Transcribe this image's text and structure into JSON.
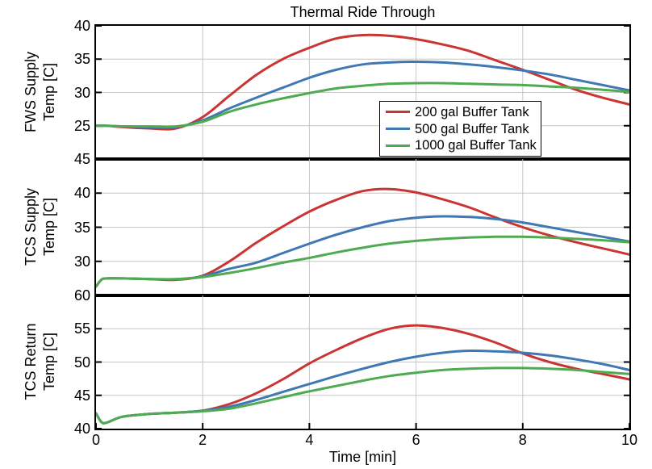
{
  "title": "Thermal Ride Through",
  "xlabel": "Time [min]",
  "colors": {
    "background": "#ffffff",
    "axis": "#000000",
    "grid": "#c6c6c6",
    "red": "#ca3432",
    "blue": "#4078b3",
    "green": "#4fab51"
  },
  "legend": {
    "position": "inside-upper-panel-right",
    "entries": [
      {
        "label": "200 gal Buffer Tank",
        "color": "#ca3432"
      },
      {
        "label": "500 gal Buffer Tank",
        "color": "#4078b3"
      },
      {
        "label": "1000 gal Buffer Tank",
        "color": "#4fab51"
      }
    ]
  },
  "chart_data": {
    "type": "line",
    "title": "Thermal Ride Through",
    "xlabel": "Time [min]",
    "xlim": [
      0,
      10
    ],
    "xticks": [
      0,
      2,
      4,
      6,
      8,
      10
    ],
    "grid": true,
    "x": [
      0,
      0.1,
      0.2,
      0.5,
      1,
      1.5,
      2,
      2.5,
      3,
      3.5,
      4,
      4.5,
      5,
      5.5,
      6,
      6.5,
      7,
      7.5,
      8,
      8.5,
      9,
      9.5,
      10
    ],
    "panels": [
      {
        "ylabel": [
          "FWS Supply",
          "Temp [C]"
        ],
        "ylim": [
          20,
          40
        ],
        "yticks": [
          25,
          30,
          35,
          40
        ],
        "series": [
          {
            "name": "200 gal Buffer Tank",
            "color": "#ca3432",
            "values": [
              25.0,
              25.0,
              25.0,
              24.8,
              24.6,
              24.6,
              26.3,
              29.5,
              32.6,
              35.0,
              36.7,
              38.1,
              38.6,
              38.5,
              38.0,
              37.2,
              36.2,
              34.8,
              33.4,
              31.9,
              30.4,
              29.2,
              28.2
            ]
          },
          {
            "name": "500 gal Buffer Tank",
            "color": "#4078b3",
            "values": [
              25.0,
              25.0,
              25.0,
              24.9,
              24.8,
              24.8,
              25.8,
              27.6,
              29.2,
              30.7,
              32.2,
              33.4,
              34.2,
              34.5,
              34.6,
              34.5,
              34.2,
              33.8,
              33.3,
              32.7,
              31.9,
              31.1,
              30.3
            ]
          },
          {
            "name": "1000 gal Buffer Tank",
            "color": "#4fab51",
            "values": [
              25.0,
              25.0,
              25.0,
              24.9,
              24.9,
              24.9,
              25.6,
              27.1,
              28.2,
              29.1,
              29.9,
              30.6,
              31.0,
              31.3,
              31.4,
              31.4,
              31.3,
              31.2,
              31.1,
              30.9,
              30.7,
              30.4,
              30.1
            ]
          }
        ]
      },
      {
        "ylabel": [
          "TCS Supply",
          "Temp [C]"
        ],
        "ylim": [
          25,
          45
        ],
        "yticks": [
          30,
          35,
          40,
          45
        ],
        "series": [
          {
            "name": "200 gal Buffer Tank",
            "color": "#ca3432",
            "values": [
              26.3,
              27.3,
              27.5,
              27.5,
              27.4,
              27.3,
              27.9,
              30.0,
              32.7,
              35.1,
              37.3,
              39.0,
              40.3,
              40.6,
              40.1,
              39.1,
              37.9,
              36.4,
              35.0,
              33.8,
              32.8,
              31.9,
              31.0
            ]
          },
          {
            "name": "500 gal Buffer Tank",
            "color": "#4078b3",
            "values": [
              26.3,
              27.3,
              27.5,
              27.5,
              27.4,
              27.4,
              27.8,
              28.9,
              29.8,
              31.2,
              32.6,
              33.9,
              35.0,
              35.9,
              36.4,
              36.6,
              36.5,
              36.2,
              35.7,
              35.0,
              34.3,
              33.6,
              32.9
            ]
          },
          {
            "name": "1000 gal Buffer Tank",
            "color": "#4fab51",
            "values": [
              26.3,
              27.3,
              27.5,
              27.5,
              27.4,
              27.4,
              27.7,
              28.3,
              29.0,
              29.8,
              30.5,
              31.3,
              32.0,
              32.6,
              33.0,
              33.3,
              33.5,
              33.6,
              33.6,
              33.5,
              33.3,
              33.1,
              32.8
            ]
          }
        ]
      },
      {
        "ylabel": [
          "TCS Return",
          "Temp [C]"
        ],
        "ylim": [
          40,
          60
        ],
        "yticks": [
          40,
          45,
          50,
          55,
          60
        ],
        "series": [
          {
            "name": "200 gal Buffer Tank",
            "color": "#ca3432",
            "values": [
              42.3,
              41.0,
              40.9,
              41.8,
              42.2,
              42.4,
              42.7,
              43.7,
              45.3,
              47.4,
              49.8,
              51.8,
              53.6,
              55.0,
              55.5,
              55.1,
              54.2,
              52.9,
              51.3,
              50.0,
              49.0,
              48.2,
              47.4
            ]
          },
          {
            "name": "500 gal Buffer Tank",
            "color": "#4078b3",
            "values": [
              42.3,
              41.0,
              40.9,
              41.8,
              42.2,
              42.4,
              42.7,
              43.3,
              44.3,
              45.5,
              46.7,
              47.9,
              49.0,
              50.0,
              50.8,
              51.4,
              51.7,
              51.6,
              51.4,
              51.0,
              50.4,
              49.7,
              48.8
            ]
          },
          {
            "name": "1000 gal Buffer Tank",
            "color": "#4fab51",
            "values": [
              42.3,
              41.0,
              40.9,
              41.8,
              42.2,
              42.4,
              42.6,
              43.0,
              43.8,
              44.7,
              45.6,
              46.4,
              47.2,
              47.9,
              48.4,
              48.8,
              49.0,
              49.1,
              49.1,
              49.0,
              48.8,
              48.5,
              48.2
            ]
          }
        ]
      }
    ]
  }
}
